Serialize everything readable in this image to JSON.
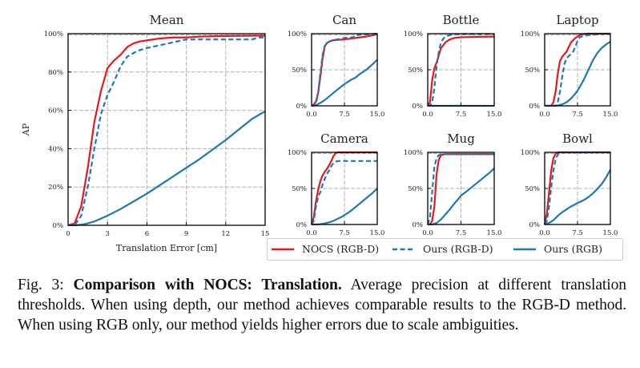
{
  "figure": {
    "caption": {
      "label": "Fig. 3:",
      "bold": "Comparison with NOCS: Translation.",
      "text": "Average precision at different translation thresholds. When using depth, our method achieves comparable results to the RGB-D method. When using RGB only, our method yields higher errors due to scale ambiguities."
    },
    "colors": {
      "nocs_rgbd": "#e31a1c",
      "ours_rgbd": "#1f77b4",
      "ours_rgb": "#1f77b4",
      "grid": "#b0b0b0"
    },
    "legend": {
      "placement": "bottom-right",
      "entries": [
        {
          "name": "NOCS (RGB-D)",
          "style": "solid",
          "color": "#e31a1c"
        },
        {
          "name": "Ours (RGB-D)",
          "style": "dashed",
          "color": "#1f77b4"
        },
        {
          "name": "Ours (RGB)",
          "style": "solid",
          "color": "#1f77b4"
        }
      ]
    }
  },
  "chart_data": [
    {
      "id": "mean",
      "type": "line",
      "title": "Mean",
      "xlabel": "Translation Error [cm]",
      "ylabel": "AP",
      "xlim": [
        0,
        15
      ],
      "ylim": [
        0,
        100
      ],
      "xticks": [
        0,
        3,
        6,
        9,
        12,
        15
      ],
      "xtick_labels": [
        "0",
        "3",
        "6",
        "9",
        "12",
        "15"
      ],
      "yticks": [
        0,
        20,
        40,
        60,
        80,
        100
      ],
      "ytick_labels": [
        "0%",
        "20%",
        "40%",
        "60%",
        "80%",
        "100%"
      ],
      "grid": true,
      "series": [
        {
          "name": "NOCS (RGB-D)",
          "x": [
            0,
            0.5,
            1.0,
            1.5,
            2.0,
            2.5,
            3.0,
            3.5,
            4.0,
            4.5,
            5.0,
            5.5,
            6.0,
            7.0,
            8.0,
            9.0,
            10.0,
            12.0,
            15.0
          ],
          "y": [
            0,
            1,
            10,
            30,
            54,
            70,
            82,
            86,
            89,
            93,
            95,
            96,
            96.5,
            97.5,
            98,
            98,
            98.5,
            98.8,
            99
          ]
        },
        {
          "name": "Ours (RGB-D)",
          "x": [
            0,
            0.5,
            1.0,
            1.5,
            2.0,
            2.5,
            3.0,
            3.5,
            4.0,
            4.5,
            5.0,
            5.5,
            6.0,
            7.0,
            8.0,
            9.0,
            10.0,
            12.0,
            14.0,
            14.5,
            15.0
          ],
          "y": [
            0,
            0,
            5,
            20,
            40,
            58,
            68,
            75,
            83,
            88,
            90,
            91.5,
            92.5,
            94,
            95.5,
            97,
            97,
            97,
            97,
            98,
            98
          ]
        },
        {
          "name": "Ours (RGB)",
          "x": [
            0,
            0.5,
            1.0,
            1.5,
            2.0,
            3.0,
            4.0,
            5.0,
            6.0,
            7.0,
            8.0,
            9.0,
            10.0,
            11.0,
            12.0,
            13.0,
            14.0,
            15.0
          ],
          "y": [
            0,
            0,
            0.3,
            1,
            2,
            5,
            8.5,
            12.5,
            16.5,
            21,
            25.5,
            30,
            34.5,
            39.5,
            44.5,
            50,
            55.5,
            59.5
          ]
        }
      ]
    },
    {
      "id": "can",
      "type": "line",
      "title": "Can",
      "xlim": [
        0,
        15
      ],
      "ylim": [
        0,
        100
      ],
      "xticks": [
        0,
        7.5,
        15
      ],
      "xtick_labels": [
        "0.0",
        "7.5",
        "15.0"
      ],
      "yticks": [
        0,
        50,
        100
      ],
      "ytick_labels": [
        "0%",
        "50%",
        "100%"
      ],
      "grid": true,
      "series": [
        {
          "name": "NOCS (RGB-D)",
          "x": [
            0,
            0.5,
            1.0,
            1.5,
            2.0,
            2.5,
            3.0,
            3.5,
            4.0,
            5.0,
            7.5,
            10,
            12.5,
            15
          ],
          "y": [
            0,
            2,
            6,
            18,
            40,
            65,
            82,
            87,
            89,
            91,
            92,
            94,
            96,
            99
          ]
        },
        {
          "name": "Ours (RGB-D)",
          "x": [
            0,
            0.5,
            1.0,
            1.5,
            2.0,
            2.5,
            3.0,
            3.5,
            4.0,
            5.0,
            7.5,
            9.5,
            10,
            12.5,
            15
          ],
          "y": [
            0,
            0,
            3,
            18,
            45,
            70,
            83,
            87,
            89,
            91,
            94,
            95,
            98,
            99,
            100
          ]
        },
        {
          "name": "Ours (RGB)",
          "x": [
            0,
            1,
            2,
            3,
            4,
            5,
            6,
            7.5,
            9,
            10,
            11,
            12.5,
            14,
            15
          ],
          "y": [
            0,
            1,
            4,
            8,
            13,
            18,
            23,
            30,
            36,
            39,
            44,
            50,
            58,
            64
          ]
        }
      ]
    },
    {
      "id": "bottle",
      "type": "line",
      "title": "Bottle",
      "xlim": [
        0,
        15
      ],
      "ylim": [
        0,
        100
      ],
      "xticks": [
        0,
        7.5,
        15
      ],
      "xtick_labels": [
        "0.0",
        "7.5",
        "15.0"
      ],
      "yticks": [
        0,
        50,
        100
      ],
      "ytick_labels": [
        "0%",
        "50%",
        "100%"
      ],
      "grid": true,
      "series": [
        {
          "name": "NOCS (RGB-D)",
          "x": [
            0,
            0.5,
            1.0,
            1.5,
            2.0,
            2.5,
            3.0,
            4.0,
            5.0,
            6.0,
            7.5,
            10,
            15
          ],
          "y": [
            0,
            5,
            35,
            52,
            60,
            70,
            80,
            88,
            92,
            94,
            95,
            95.5,
            96
          ]
        },
        {
          "name": "Ours (RGB-D)",
          "x": [
            0,
            0.5,
            1.0,
            1.5,
            2.0,
            2.5,
            3.0,
            3.5,
            4.0,
            5.0,
            6.0,
            7.5,
            10,
            15
          ],
          "y": [
            0,
            0,
            5,
            25,
            55,
            75,
            88,
            93,
            96,
            98,
            99,
            99.5,
            99.5,
            99.5
          ]
        },
        {
          "name": "Ours (RGB)",
          "x": [
            0,
            15
          ],
          "y": [
            0,
            0
          ]
        }
      ]
    },
    {
      "id": "laptop",
      "type": "line",
      "title": "Laptop",
      "xlim": [
        0,
        15
      ],
      "ylim": [
        0,
        100
      ],
      "xticks": [
        0,
        7.5,
        15
      ],
      "xtick_labels": [
        "0.0",
        "7.5",
        "15.0"
      ],
      "yticks": [
        0,
        50,
        100
      ],
      "ytick_labels": [
        "0%",
        "50%",
        "100%"
      ],
      "grid": true,
      "series": [
        {
          "name": "NOCS (RGB-D)",
          "x": [
            0,
            1.5,
            2.0,
            2.5,
            3.0,
            3.5,
            4.0,
            5.0,
            6.0,
            7.0,
            8.0,
            9.0,
            10,
            15
          ],
          "y": [
            0,
            0,
            5,
            20,
            45,
            62,
            68,
            75,
            88,
            94,
            98,
            99.5,
            100,
            100
          ]
        },
        {
          "name": "Ours (RGB-D)",
          "x": [
            0,
            2.5,
            3.0,
            3.5,
            4.0,
            4.5,
            5.0,
            6.0,
            6.5,
            7.0,
            7.5,
            8.0,
            9.0,
            10,
            12,
            15
          ],
          "y": [
            0,
            0,
            5,
            20,
            40,
            58,
            66,
            72,
            75,
            82,
            90,
            95,
            97,
            98,
            99,
            100
          ]
        },
        {
          "name": "Ours (RGB)",
          "x": [
            0,
            2,
            3,
            4,
            5,
            6,
            7,
            7.5,
            8,
            9,
            10,
            11,
            12,
            13,
            14,
            15
          ],
          "y": [
            0,
            0,
            0.5,
            2,
            5,
            10,
            17,
            21,
            26,
            37,
            50,
            63,
            73,
            80,
            85,
            89
          ]
        }
      ]
    },
    {
      "id": "camera",
      "type": "line",
      "title": "Camera",
      "xlim": [
        0,
        15
      ],
      "ylim": [
        0,
        100
      ],
      "xticks": [
        0,
        7.5,
        15
      ],
      "xtick_labels": [
        "0.0",
        "7.5",
        "15.0"
      ],
      "yticks": [
        0,
        50,
        100
      ],
      "ytick_labels": [
        "0%",
        "50%",
        "100%"
      ],
      "grid": true,
      "series": [
        {
          "name": "NOCS (RGB-D)",
          "x": [
            0,
            0.5,
            1.0,
            1.5,
            2.0,
            2.5,
            3.0,
            3.5,
            4.0,
            4.5,
            5.0,
            5.5,
            6.0,
            15
          ],
          "y": [
            0,
            10,
            32,
            48,
            60,
            68,
            73,
            77,
            82,
            88,
            95,
            99,
            100,
            100
          ]
        },
        {
          "name": "Ours (RGB-D)",
          "x": [
            0,
            0.5,
            1.0,
            1.5,
            2.0,
            2.5,
            3.0,
            3.5,
            4.0,
            4.5,
            5.0,
            5.5,
            6.0,
            15
          ],
          "y": [
            0,
            5,
            25,
            38,
            45,
            55,
            63,
            70,
            75,
            81,
            85,
            87,
            88,
            88
          ]
        },
        {
          "name": "Ours (RGB)",
          "x": [
            0,
            1,
            2,
            3,
            4,
            5,
            6,
            7,
            7.5,
            9,
            10,
            11,
            12,
            13,
            14,
            15
          ],
          "y": [
            0,
            0,
            0.5,
            1.5,
            3,
            5,
            8,
            11,
            13,
            19,
            24,
            29,
            34,
            39,
            44,
            50
          ]
        }
      ]
    },
    {
      "id": "mug",
      "type": "line",
      "title": "Mug",
      "xlim": [
        0,
        15
      ],
      "ylim": [
        0,
        100
      ],
      "xticks": [
        0,
        7.5,
        15
      ],
      "xtick_labels": [
        "0.0",
        "7.5",
        "15.0"
      ],
      "yticks": [
        0,
        50,
        100
      ],
      "ytick_labels": [
        "0%",
        "50%",
        "100%"
      ],
      "grid": true,
      "series": [
        {
          "name": "NOCS (RGB-D)",
          "x": [
            0,
            0.5,
            1.0,
            1.5,
            2.0,
            2.5,
            3.0,
            3.5,
            4.0,
            15
          ],
          "y": [
            0,
            0,
            5,
            25,
            70,
            90,
            96,
            97,
            97.5,
            97.5
          ]
        },
        {
          "name": "Ours (RGB-D)",
          "x": [
            0,
            0.5,
            1.0,
            1.5,
            2.0,
            2.5,
            3.0,
            3.5,
            15
          ],
          "y": [
            0,
            10,
            45,
            80,
            92,
            96,
            97,
            97.5,
            97.5
          ]
        },
        {
          "name": "Ours (RGB)",
          "x": [
            0,
            1,
            2,
            3,
            4,
            5,
            6,
            7,
            7.5,
            9,
            10,
            11,
            12,
            13,
            14,
            15
          ],
          "y": [
            0,
            0,
            2,
            7,
            14,
            21,
            29,
            36,
            40,
            47,
            52,
            57,
            62,
            67,
            72,
            78
          ]
        }
      ]
    },
    {
      "id": "bowl",
      "type": "line",
      "title": "Bowl",
      "xlim": [
        0,
        15
      ],
      "ylim": [
        0,
        100
      ],
      "xticks": [
        0,
        7.5,
        15
      ],
      "xtick_labels": [
        "0.0",
        "7.5",
        "15.0"
      ],
      "yticks": [
        0,
        50,
        100
      ],
      "ytick_labels": [
        "0%",
        "50%",
        "100%"
      ],
      "grid": true,
      "series": [
        {
          "name": "NOCS (RGB-D)",
          "x": [
            0,
            0.5,
            1.0,
            1.5,
            2.0,
            2.5,
            3.0,
            15
          ],
          "y": [
            0,
            15,
            45,
            75,
            92,
            98,
            100,
            100
          ]
        },
        {
          "name": "Ours (RGB-D)",
          "x": [
            0,
            0.5,
            1.0,
            1.5,
            2.0,
            2.5,
            3.0,
            3.5,
            15
          ],
          "y": [
            0,
            5,
            25,
            52,
            75,
            90,
            97,
            100,
            100
          ]
        },
        {
          "name": "Ours (RGB)",
          "x": [
            0,
            1,
            2,
            3,
            4,
            5,
            6,
            7,
            7.5,
            8,
            9,
            10,
            11,
            12,
            13,
            14,
            15
          ],
          "y": [
            0,
            2,
            6,
            12,
            17,
            21,
            25,
            28,
            30,
            31,
            34,
            38,
            43,
            49,
            56,
            65,
            76
          ]
        }
      ]
    }
  ]
}
